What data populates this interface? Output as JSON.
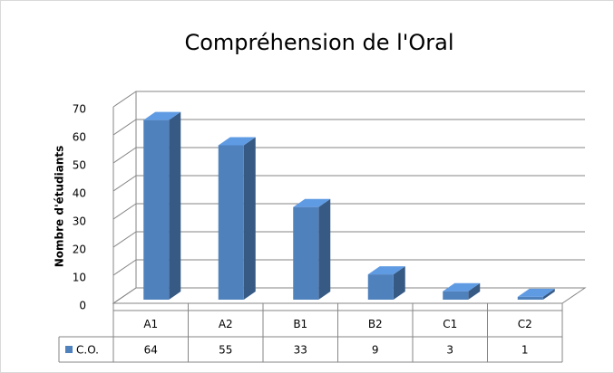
{
  "chart_data": {
    "type": "bar",
    "title": "Compréhension de l'Oral",
    "y_label": "Nombre d'étudiants",
    "categories": [
      "A1",
      "A2",
      "B1",
      "B2",
      "C1",
      "C2"
    ],
    "series": [
      {
        "name": "C.O.",
        "color": "#4f81bd",
        "values": [
          64,
          55,
          33,
          9,
          3,
          1
        ]
      }
    ],
    "ylim": [
      0,
      70
    ],
    "yticks": [
      0,
      10,
      20,
      30,
      40,
      50,
      60,
      70
    ],
    "grid": true,
    "data_table": true
  }
}
